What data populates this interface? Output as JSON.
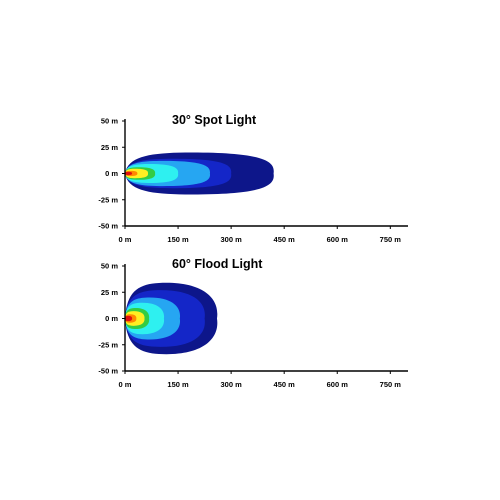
{
  "chart_data": [
    {
      "type": "area",
      "title": "30° Spot Light",
      "x_ticks": [
        "0 m",
        "150 m",
        "300 m",
        "450 m",
        "600 m",
        "750 m"
      ],
      "y_ticks": [
        "50 m",
        "25 m",
        "0 m",
        "-25 m",
        "-50 m"
      ],
      "xlim": [
        0,
        800
      ],
      "ylim": [
        -50,
        50
      ],
      "x_tick_values": [
        0,
        150,
        300,
        450,
        600,
        750
      ],
      "y_tick_values": [
        50,
        25,
        0,
        -25,
        -50
      ],
      "grid": false,
      "contours": [
        {
          "color": "#0d168a",
          "reach": 420,
          "half_width": 20
        },
        {
          "color": "#1426c8",
          "reach": 300,
          "half_width": 14
        },
        {
          "color": "#26a6f2",
          "reach": 240,
          "half_width": 12
        },
        {
          "color": "#2ef0f0",
          "reach": 150,
          "half_width": 9
        },
        {
          "color": "#33cc44",
          "reach": 85,
          "half_width": 6
        },
        {
          "color": "#ffee22",
          "reach": 65,
          "half_width": 4.5
        },
        {
          "color": "#ff8800",
          "reach": 35,
          "half_width": 2.5
        },
        {
          "color": "#dd1111",
          "reach": 20,
          "half_width": 1.5
        }
      ]
    },
    {
      "type": "area",
      "title": "60° Flood Light",
      "x_ticks": [
        "0 m",
        "150 m",
        "300 m",
        "450 m",
        "600 m",
        "750 m"
      ],
      "y_ticks": [
        "50 m",
        "25 m",
        "0 m",
        "-25 m",
        "-50 m"
      ],
      "xlim": [
        0,
        800
      ],
      "ylim": [
        -50,
        50
      ],
      "x_tick_values": [
        0,
        150,
        300,
        450,
        600,
        750
      ],
      "y_tick_values": [
        50,
        25,
        0,
        -25,
        -50
      ],
      "grid": false,
      "contours": [
        {
          "color": "#0d168a",
          "reach": 260,
          "half_width": 34
        },
        {
          "color": "#1426c8",
          "reach": 225,
          "half_width": 27
        },
        {
          "color": "#26a6f2",
          "reach": 155,
          "half_width": 20
        },
        {
          "color": "#2ef0f0",
          "reach": 110,
          "half_width": 15
        },
        {
          "color": "#33cc44",
          "reach": 68,
          "half_width": 10
        },
        {
          "color": "#ffee22",
          "reach": 55,
          "half_width": 7
        },
        {
          "color": "#ff8800",
          "reach": 32,
          "half_width": 4
        },
        {
          "color": "#dd1111",
          "reach": 20,
          "half_width": 2.5
        }
      ]
    }
  ]
}
